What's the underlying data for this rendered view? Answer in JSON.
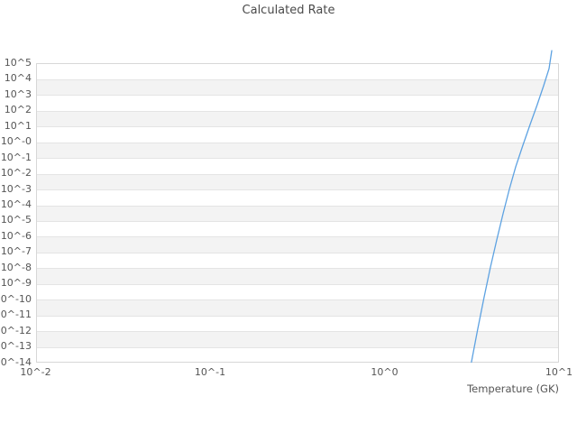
{
  "title": "Calculated Rate",
  "colors": {
    "line": "#5da2e2",
    "band": "#f3f3f3",
    "gridline": "#e4e4e4",
    "plot_border": "#d7d7d7",
    "tick_text": "#555555",
    "title_text": "#4a4a4a",
    "background": "#ffffff"
  },
  "chart_data": {
    "type": "line",
    "title": "Calculated Rate",
    "xlabel": "Temperature (GK)",
    "ylabel": "",
    "x_scale": "log",
    "y_scale": "log",
    "xlim": [
      0.01,
      10
    ],
    "ylim": [
      1e-14,
      100000.0
    ],
    "grid": "horizontal-bands",
    "legend": "none",
    "x_ticks": [
      {
        "label": "10^-2",
        "log_value": -2
      },
      {
        "label": "10^-1",
        "log_value": -1
      },
      {
        "label": "10^0",
        "log_value": 0
      },
      {
        "label": "10^1",
        "log_value": 1
      }
    ],
    "y_ticks": [
      {
        "label": "10^5",
        "log_value": 5
      },
      {
        "label": "10^4",
        "log_value": 4
      },
      {
        "label": "10^3",
        "log_value": 3
      },
      {
        "label": "10^2",
        "log_value": 2
      },
      {
        "label": "10^1",
        "log_value": 1
      },
      {
        "label": "10^-0",
        "log_value": 0
      },
      {
        "label": "10^-1",
        "log_value": -1
      },
      {
        "label": "10^-2",
        "log_value": -2
      },
      {
        "label": "10^-3",
        "log_value": -3
      },
      {
        "label": "10^-4",
        "log_value": -4
      },
      {
        "label": "10^-5",
        "log_value": -5
      },
      {
        "label": "10^-6",
        "log_value": -6
      },
      {
        "label": "10^-7",
        "log_value": -7
      },
      {
        "label": "10^-8",
        "log_value": -8
      },
      {
        "label": "10^-9",
        "log_value": -9
      },
      {
        "label": "10^-10",
        "log_value": -10
      },
      {
        "label": "10^-11",
        "log_value": -11
      },
      {
        "label": "10^-12",
        "log_value": -12
      },
      {
        "label": "10^-13",
        "log_value": -13
      },
      {
        "label": "10^-14",
        "log_value": -14
      }
    ],
    "series": [
      {
        "name": "calculated-rate",
        "color": "#5da2e2",
        "x": [
          3.15,
          3.42,
          3.72,
          4.04,
          4.4,
          4.78,
          5.19,
          5.65,
          6.21,
          6.83,
          7.51,
          8.17,
          8.77,
          9.09
        ],
        "y": [
          1e-14,
          1.2e-12,
          1.3e-10,
          9.8e-09,
          5.9e-07,
          2.7e-05,
          0.00095,
          0.026,
          0.61,
          12.6,
          230.0,
          3700.0,
          45000.0,
          630000.0
        ]
      }
    ]
  }
}
